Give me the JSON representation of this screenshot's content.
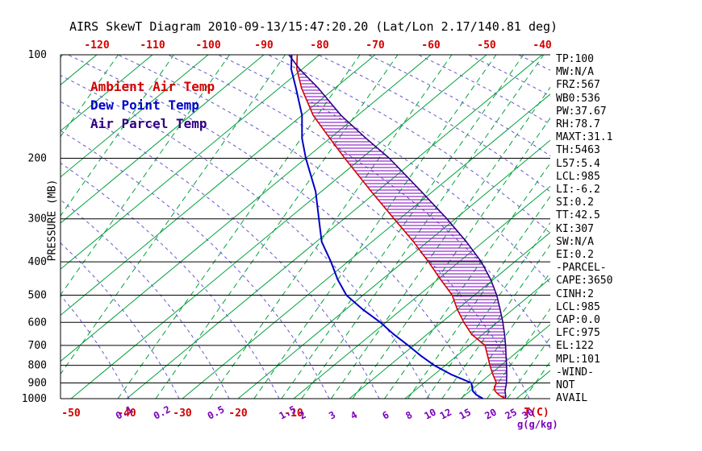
{
  "title": "AIRS SkewT Diagram 2010-09-13/15:47:20.20 (Lat/Lon 2.17/140.81 deg)",
  "legend": {
    "ambient_label": "Ambient Air Temp",
    "dew_label": "Dew Point Temp",
    "parcel_label": "Air Parcel Temp"
  },
  "axes": {
    "pressure_axis_label": "PRESSURE (MB)",
    "pressure_ticks": [
      100,
      200,
      300,
      400,
      500,
      600,
      700,
      800,
      900,
      1000
    ],
    "top_temp_ticks": [
      -120,
      -110,
      -100,
      -90,
      -80,
      -70,
      -60,
      -50,
      -40
    ],
    "bottom_temp_ticks": [
      -50,
      -40,
      -30,
      -20,
      -10
    ],
    "temp_unit_label": "T(C)",
    "mixing_ratio_ticks": [
      0.1,
      0.2,
      0.5,
      1.5,
      2,
      3,
      4,
      6,
      8,
      10,
      12,
      15,
      20,
      25,
      30
    ],
    "mixing_unit_label": "g(g/kg)"
  },
  "stats_panel": {
    "lines": [
      "TP:100",
      "MW:N/A",
      "FRZ:567",
      "WB0:536",
      "PW:37.67",
      "RH:78.7",
      "MAXT:31.1",
      "TH:5463",
      "L57:5.4",
      "LCL:985",
      "LI:-6.2",
      "SI:0.2",
      "TT:42.5",
      "KI:307",
      "SW:N/A",
      "EI:0.2",
      "-PARCEL-",
      "CAPE:3650",
      "CINH:2",
      "LCL:985",
      "CAP:0.0",
      "LFC:975",
      "EL:122",
      "MPL:101",
      "-WIND-",
      "NOT",
      "AVAIL"
    ]
  },
  "colors": {
    "ambient": "#d40000",
    "dew": "#0000c8",
    "parcel": "#2f0080",
    "isotherm": "#00a33c",
    "mixing_line": "#00a33c",
    "dry_adiabat": "#6655cc",
    "hatch": "#7a00b8",
    "axis_temp_text": "#d40000",
    "axis_mixing_text": "#7a00b8",
    "text": "#000000"
  },
  "chart_data": {
    "type": "line",
    "title": "AIRS SkewT Diagram 2010-09-13/15:47:20.20 (Lat/Lon 2.17/140.81 deg)",
    "x_axis_label": "T(C)",
    "y_axis_label": "PRESSURE (MB)",
    "y_scale": "log",
    "y_range": [
      100,
      1000
    ],
    "x_top_tick_range": [
      -120,
      -40
    ],
    "grid": {
      "isotherms_c_step": 10,
      "isotherms_c_range": [
        -130,
        40
      ],
      "mixing_ratio_lines_g_kg": [
        0.1,
        0.2,
        0.5,
        1,
        1.5,
        2,
        3,
        4,
        6,
        8,
        10,
        12,
        15,
        20,
        25,
        30
      ],
      "pressure_lines_mb": [
        100,
        200,
        300,
        400,
        500,
        600,
        700,
        800,
        900,
        1000
      ]
    },
    "series": [
      {
        "name": "Ambient Air Temp",
        "color_key": "ambient",
        "points_p_T": [
          [
            1000,
            28
          ],
          [
            975,
            26
          ],
          [
            950,
            24.5
          ],
          [
            925,
            23.5
          ],
          [
            900,
            23
          ],
          [
            850,
            20.5
          ],
          [
            800,
            18
          ],
          [
            750,
            15.5
          ],
          [
            700,
            12.8
          ],
          [
            650,
            8
          ],
          [
            600,
            4
          ],
          [
            550,
            0
          ],
          [
            500,
            -4
          ],
          [
            450,
            -9.5
          ],
          [
            400,
            -15.5
          ],
          [
            350,
            -22.5
          ],
          [
            300,
            -31
          ],
          [
            250,
            -41
          ],
          [
            200,
            -53
          ],
          [
            175,
            -60
          ],
          [
            150,
            -68
          ],
          [
            125,
            -76
          ],
          [
            110,
            -81
          ],
          [
            100,
            -84
          ]
        ]
      },
      {
        "name": "Dew Point Temp",
        "color_key": "dew",
        "points_p_T": [
          [
            1000,
            24
          ],
          [
            975,
            22
          ],
          [
            950,
            20.5
          ],
          [
            925,
            19.5
          ],
          [
            900,
            18.5
          ],
          [
            850,
            13
          ],
          [
            800,
            8
          ],
          [
            750,
            3.5
          ],
          [
            700,
            -1
          ],
          [
            650,
            -6
          ],
          [
            600,
            -11
          ],
          [
            550,
            -17
          ],
          [
            500,
            -23
          ],
          [
            450,
            -28
          ],
          [
            400,
            -33
          ],
          [
            350,
            -39
          ],
          [
            300,
            -44.5
          ],
          [
            250,
            -51
          ],
          [
            200,
            -60
          ],
          [
            175,
            -65
          ],
          [
            150,
            -70
          ],
          [
            125,
            -77
          ],
          [
            110,
            -82
          ],
          [
            100,
            -85
          ]
        ]
      },
      {
        "name": "Air Parcel Temp",
        "color_key": "parcel",
        "points_p_T": [
          [
            1000,
            28
          ],
          [
            985,
            27.6
          ],
          [
            950,
            26.3
          ],
          [
            900,
            24.8
          ],
          [
            850,
            23
          ],
          [
            800,
            21
          ],
          [
            750,
            18.8
          ],
          [
            700,
            16.5
          ],
          [
            650,
            13.9
          ],
          [
            600,
            11
          ],
          [
            550,
            7.7
          ],
          [
            500,
            4
          ],
          [
            450,
            -0.5
          ],
          [
            400,
            -6
          ],
          [
            350,
            -13
          ],
          [
            300,
            -21.5
          ],
          [
            250,
            -32
          ],
          [
            200,
            -45
          ],
          [
            175,
            -53.5
          ],
          [
            150,
            -63
          ],
          [
            125,
            -73
          ],
          [
            110,
            -80.5
          ],
          [
            100,
            -85.5
          ]
        ]
      }
    ],
    "hatched_region": "CAPE area: horizontal hatch between Ambient Air Temp and Air Parcel Temp curves from ~985 mb up to ~110 mb"
  }
}
